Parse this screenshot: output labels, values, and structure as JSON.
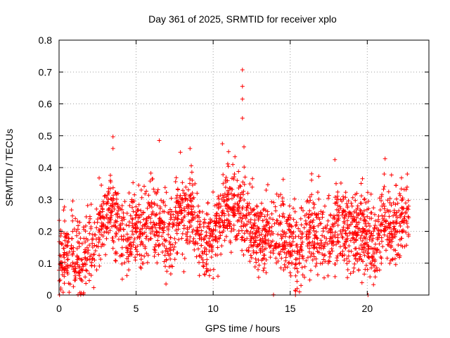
{
  "chart_data": {
    "type": "scatter",
    "title": "Day 361 of 2025, SRMTID for receiver xplo",
    "xlabel": "GPS time / hours",
    "ylabel": "SRMTID / TECUs",
    "xlim": [
      0,
      24
    ],
    "ylim": [
      0,
      0.8
    ],
    "xticks": [
      "0",
      "5",
      "10",
      "15",
      "20"
    ],
    "yticks": [
      "0",
      "0.1",
      "0.2",
      "0.3",
      "0.4",
      "0.5",
      "0.6",
      "0.7",
      "0.8"
    ],
    "grid": true,
    "marker": "+",
    "color": "#ff0000",
    "series": [
      {
        "name": "SRMTID",
        "x_range": [
          0.0,
          22.7
        ],
        "profile": [
          [
            0.0,
            0.11
          ],
          [
            0.5,
            0.13
          ],
          [
            1.0,
            0.11
          ],
          [
            1.5,
            0.1
          ],
          [
            2.0,
            0.14
          ],
          [
            2.5,
            0.18
          ],
          [
            3.0,
            0.24
          ],
          [
            3.5,
            0.27
          ],
          [
            4.0,
            0.2
          ],
          [
            4.5,
            0.17
          ],
          [
            5.0,
            0.23
          ],
          [
            5.5,
            0.22
          ],
          [
            6.0,
            0.25
          ],
          [
            6.5,
            0.22
          ],
          [
            7.0,
            0.15
          ],
          [
            7.5,
            0.22
          ],
          [
            8.0,
            0.24
          ],
          [
            8.5,
            0.27
          ],
          [
            9.0,
            0.2
          ],
          [
            9.5,
            0.17
          ],
          [
            10.0,
            0.18
          ],
          [
            10.5,
            0.23
          ],
          [
            11.0,
            0.28
          ],
          [
            11.5,
            0.27
          ],
          [
            12.0,
            0.24
          ],
          [
            12.5,
            0.21
          ],
          [
            13.0,
            0.2
          ],
          [
            13.5,
            0.19
          ],
          [
            14.0,
            0.18
          ],
          [
            14.5,
            0.2
          ],
          [
            15.0,
            0.18
          ],
          [
            15.5,
            0.12
          ],
          [
            16.0,
            0.2
          ],
          [
            16.5,
            0.21
          ],
          [
            17.0,
            0.18
          ],
          [
            17.5,
            0.18
          ],
          [
            18.0,
            0.22
          ],
          [
            18.5,
            0.2
          ],
          [
            19.0,
            0.2
          ],
          [
            19.5,
            0.2
          ],
          [
            20.0,
            0.19
          ],
          [
            20.5,
            0.17
          ],
          [
            21.0,
            0.22
          ],
          [
            21.5,
            0.19
          ],
          [
            22.0,
            0.22
          ],
          [
            22.7,
            0.25
          ]
        ],
        "spread": 0.06,
        "count": 2200,
        "peaks": [
          [
            3.5,
            0.497
          ],
          [
            3.5,
            0.46
          ],
          [
            6.5,
            0.485
          ],
          [
            8.5,
            0.46
          ],
          [
            10.6,
            0.475
          ],
          [
            11.0,
            0.45
          ],
          [
            11.9,
            0.707
          ],
          [
            11.9,
            0.655
          ],
          [
            11.9,
            0.615
          ],
          [
            11.9,
            0.555
          ],
          [
            12.0,
            0.465
          ],
          [
            17.9,
            0.425
          ],
          [
            15.6,
            0.01
          ],
          [
            15.7,
            0.03
          ],
          [
            20.05,
            0.0
          ],
          [
            4.1,
            0.05
          ],
          [
            22.6,
            0.38
          ],
          [
            21.1,
            0.38
          ]
        ]
      }
    ]
  }
}
